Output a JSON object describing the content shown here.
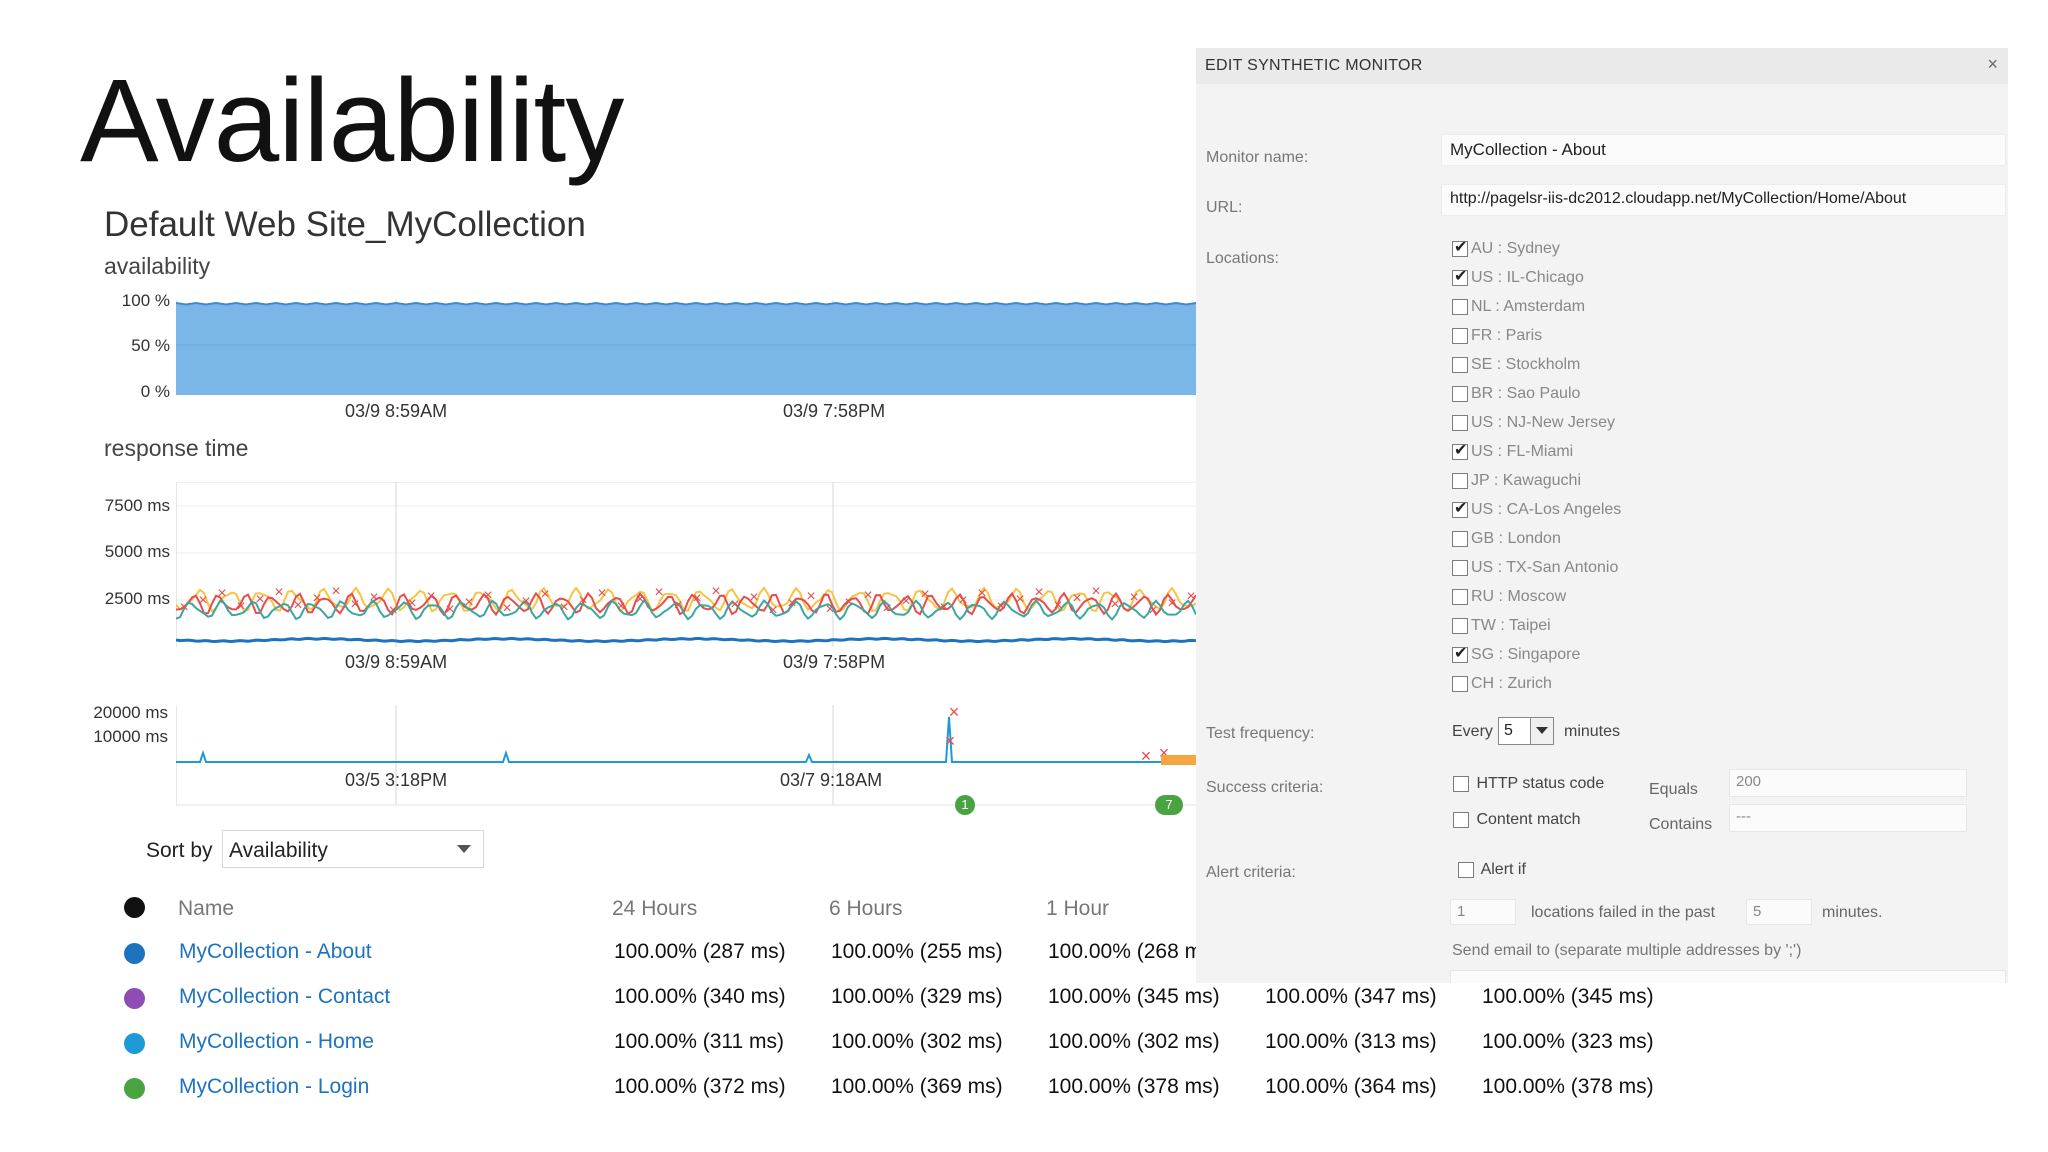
{
  "page": {
    "title": "Availability",
    "site": "Default Web Site_MyCollection"
  },
  "charts": {
    "availability": {
      "heading": "availability",
      "yticks": [
        "100 %",
        "50 %",
        "0 %"
      ],
      "xticks": [
        "03/9 8:59AM",
        "03/9 7:58PM"
      ],
      "fill_color": "#7ab6e8",
      "line_color": "#3f88cf"
    },
    "response": {
      "heading": "response time",
      "yticks": [
        "7500 ms",
        "5000 ms",
        "2500 ms"
      ],
      "xticks": [
        "03/9 8:59AM",
        "03/9 7:58PM"
      ],
      "series_colors": {
        "sydney": "#e84c4c",
        "chicago": "#f5c542",
        "miami": "#3aa7a0",
        "los_angeles": "#1e73be"
      }
    },
    "longterm": {
      "yticks": [
        "20000 ms",
        "10000 ms"
      ],
      "xticks": [
        "03/5 3:18PM",
        "03/7 9:18AM"
      ],
      "badges": [
        "1",
        "7"
      ],
      "badge_color": "#4aa341"
    }
  },
  "sort": {
    "label": "Sort by",
    "value": "Availability"
  },
  "table": {
    "headers": {
      "name": "Name",
      "h24": "24 Hours",
      "h6": "6 Hours",
      "h1": "1 Hour"
    },
    "rows": [
      {
        "color": "#1e73be",
        "name": "MyCollection - About",
        "v": [
          "100.00% (287 ms)",
          "100.00% (255 ms)",
          "100.00% (268 m"
        ]
      },
      {
        "color": "#8e4db4",
        "name": "MyCollection - Contact",
        "v": [
          "100.00% (340 ms)",
          "100.00% (329 ms)",
          "100.00% (345 ms)",
          "100.00% (347 ms)",
          "100.00% (345 ms)"
        ]
      },
      {
        "color": "#1e9ad6",
        "name": "MyCollection - Home",
        "v": [
          "100.00% (311 ms)",
          "100.00% (302 ms)",
          "100.00% (302 ms)",
          "100.00% (313 ms)",
          "100.00% (323 ms)"
        ]
      },
      {
        "color": "#4aa341",
        "name": "MyCollection - Login",
        "v": [
          "100.00% (372 ms)",
          "100.00% (369 ms)",
          "100.00% (378 ms)",
          "100.00% (364 ms)",
          "100.00% (378 ms)"
        ]
      }
    ]
  },
  "edit": {
    "title": "EDIT SYNTHETIC MONITOR",
    "close": "×",
    "monitor_name_label": "Monitor name:",
    "monitor_name": "MyCollection - About",
    "url_label": "URL:",
    "url": "http://pagelsr-iis-dc2012.cloudapp.net/MyCollection/Home/About",
    "locations_label": "Locations:",
    "locations": [
      {
        "label": "AU : Sydney",
        "checked": true
      },
      {
        "label": "US : IL-Chicago",
        "checked": true
      },
      {
        "label": "NL : Amsterdam",
        "checked": false
      },
      {
        "label": "FR : Paris",
        "checked": false
      },
      {
        "label": "SE : Stockholm",
        "checked": false
      },
      {
        "label": "BR : Sao Paulo",
        "checked": false
      },
      {
        "label": "US : NJ-New Jersey",
        "checked": false
      },
      {
        "label": "US : FL-Miami",
        "checked": true
      },
      {
        "label": "JP : Kawaguchi",
        "checked": false
      },
      {
        "label": "US : CA-Los Angeles",
        "checked": true
      },
      {
        "label": "GB : London",
        "checked": false
      },
      {
        "label": "US : TX-San Antonio",
        "checked": false
      },
      {
        "label": "RU : Moscow",
        "checked": false
      },
      {
        "label": "TW : Taipei",
        "checked": false
      },
      {
        "label": "SG : Singapore",
        "checked": true
      },
      {
        "label": "CH : Zurich",
        "checked": false
      }
    ],
    "frequency_label": "Test frequency:",
    "frequency_prefix": "Every",
    "frequency_value": "5",
    "frequency_suffix": "minutes",
    "success_label": "Success criteria:",
    "http_status_label": "HTTP status code",
    "equals_label": "Equals",
    "equals_value": "200",
    "content_match_label": "Content match",
    "contains_label": "Contains",
    "contains_value": "---",
    "alert_label": "Alert criteria:",
    "alert_if_label": "Alert if",
    "alert_locations_value": "1",
    "alert_locations_text": "locations failed in the past",
    "alert_minutes_value": "5",
    "alert_minutes_text": "minutes.",
    "email_label": "Send email to (separate multiple addresses by ';')"
  }
}
